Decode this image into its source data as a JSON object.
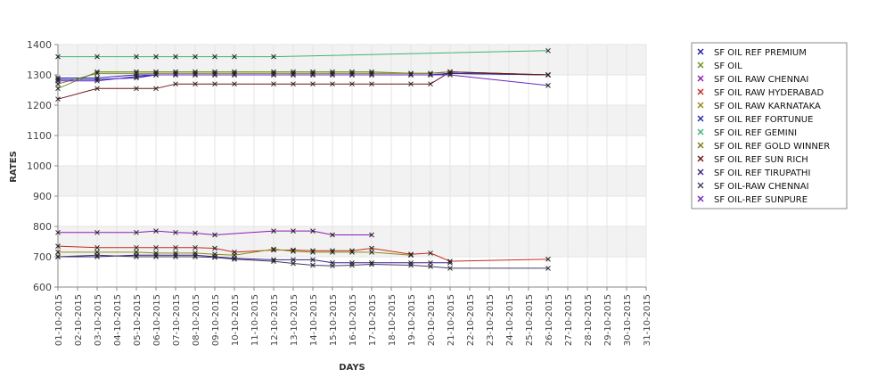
{
  "chart_data": {
    "type": "line",
    "title": "",
    "xlabel": "DAYS",
    "ylabel": "RATES",
    "ylim": [
      600,
      1400
    ],
    "yticks": [
      600,
      700,
      800,
      900,
      1000,
      1100,
      1200,
      1300,
      1400
    ],
    "grid": true,
    "legend_position": "right",
    "x": [
      "01-10-2015",
      "02-10-2015",
      "03-10-2015",
      "04-10-2015",
      "05-10-2015",
      "06-10-2015",
      "07-10-2015",
      "08-10-2015",
      "09-10-2015",
      "10-10-2015",
      "11-10-2015",
      "12-10-2015",
      "13-10-2015",
      "14-10-2015",
      "15-10-2015",
      "16-10-2015",
      "17-10-2015",
      "18-10-2015",
      "19-10-2015",
      "20-10-2015",
      "21-10-2015",
      "22-10-2015",
      "23-10-2015",
      "24-10-2015",
      "25-10-2015",
      "26-10-2015",
      "27-10-2015",
      "28-10-2015",
      "29-10-2015",
      "30-10-2015",
      "31-10-2015"
    ],
    "series": [
      {
        "name": "SF OIL REF PREMIUM",
        "color": "#1c1cb4",
        "points": [
          [
            "01-10-2015",
            1285
          ],
          [
            "03-10-2015",
            1285
          ],
          [
            "05-10-2015",
            1290
          ],
          [
            "06-10-2015",
            1300
          ],
          [
            "07-10-2015",
            1300
          ],
          [
            "08-10-2015",
            1300
          ],
          [
            "09-10-2015",
            1300
          ],
          [
            "10-10-2015",
            1300
          ],
          [
            "12-10-2015",
            1300
          ],
          [
            "13-10-2015",
            1300
          ],
          [
            "14-10-2015",
            1300
          ],
          [
            "15-10-2015",
            1300
          ],
          [
            "16-10-2015",
            1300
          ],
          [
            "17-10-2015",
            1300
          ],
          [
            "19-10-2015",
            1300
          ],
          [
            "20-10-2015",
            1300
          ],
          [
            "21-10-2015",
            1305
          ],
          [
            "26-10-2015",
            1300
          ]
        ]
      },
      {
        "name": "SF OIL",
        "color": "#6b8e23",
        "points": [
          [
            "01-10-2015",
            1255
          ],
          [
            "03-10-2015",
            1310
          ],
          [
            "05-10-2015",
            1310
          ],
          [
            "06-10-2015",
            1310
          ],
          [
            "07-10-2015",
            1310
          ],
          [
            "08-10-2015",
            1310
          ],
          [
            "09-10-2015",
            1310
          ],
          [
            "10-10-2015",
            1310
          ],
          [
            "12-10-2015",
            1310
          ],
          [
            "13-10-2015",
            1310
          ],
          [
            "14-10-2015",
            1310
          ],
          [
            "15-10-2015",
            1310
          ],
          [
            "16-10-2015",
            1310
          ],
          [
            "17-10-2015",
            1310
          ],
          [
            "19-10-2015",
            1305
          ],
          [
            "20-10-2015",
            1305
          ],
          [
            "21-10-2015",
            1310
          ],
          [
            "26-10-2015",
            1300
          ]
        ]
      },
      {
        "name": "SF OIL RAW CHENNAI",
        "color": "#8b1ab4",
        "points": [
          [
            "01-10-2015",
            780
          ],
          [
            "03-10-2015",
            780
          ],
          [
            "05-10-2015",
            780
          ],
          [
            "06-10-2015",
            785
          ],
          [
            "07-10-2015",
            780
          ],
          [
            "08-10-2015",
            778
          ],
          [
            "09-10-2015",
            772
          ],
          [
            "12-10-2015",
            785
          ],
          [
            "13-10-2015",
            785
          ],
          [
            "14-10-2015",
            785
          ],
          [
            "15-10-2015",
            772
          ],
          [
            "17-10-2015",
            772
          ]
        ]
      },
      {
        "name": "SF OIL RAW HYDERABAD",
        "color": "#c8281e",
        "points": [
          [
            "01-10-2015",
            735
          ],
          [
            "03-10-2015",
            730
          ],
          [
            "05-10-2015",
            730
          ],
          [
            "06-10-2015",
            730
          ],
          [
            "07-10-2015",
            730
          ],
          [
            "08-10-2015",
            730
          ],
          [
            "09-10-2015",
            728
          ],
          [
            "10-10-2015",
            715
          ],
          [
            "12-10-2015",
            722
          ],
          [
            "13-10-2015",
            722
          ],
          [
            "14-10-2015",
            720
          ],
          [
            "15-10-2015",
            720
          ],
          [
            "16-10-2015",
            720
          ],
          [
            "17-10-2015",
            728
          ],
          [
            "19-10-2015",
            708
          ],
          [
            "20-10-2015",
            712
          ],
          [
            "21-10-2015",
            685
          ],
          [
            "26-10-2015",
            692
          ]
        ]
      },
      {
        "name": "SF OIL RAW KARNATAKA",
        "color": "#8c8c14",
        "points": [
          [
            "01-10-2015",
            715
          ],
          [
            "03-10-2015",
            715
          ],
          [
            "05-10-2015",
            715
          ],
          [
            "06-10-2015",
            712
          ],
          [
            "07-10-2015",
            712
          ],
          [
            "08-10-2015",
            712
          ],
          [
            "09-10-2015",
            708
          ],
          [
            "10-10-2015",
            705
          ],
          [
            "12-10-2015",
            725
          ],
          [
            "13-10-2015",
            718
          ],
          [
            "14-10-2015",
            715
          ],
          [
            "15-10-2015",
            715
          ],
          [
            "16-10-2015",
            715
          ],
          [
            "17-10-2015",
            715
          ],
          [
            "19-10-2015",
            705
          ]
        ]
      },
      {
        "name": "SF OIL REF FORTUNUE",
        "color": "#2828b4",
        "points": [
          [
            "01-10-2015",
            1290
          ],
          [
            "03-10-2015",
            1290
          ],
          [
            "05-10-2015",
            1300
          ],
          [
            "06-10-2015",
            1300
          ],
          [
            "07-10-2015",
            1300
          ],
          [
            "08-10-2015",
            1300
          ],
          [
            "09-10-2015",
            1300
          ],
          [
            "10-10-2015",
            1300
          ],
          [
            "12-10-2015",
            1300
          ],
          [
            "13-10-2015",
            1300
          ],
          [
            "14-10-2015",
            1300
          ],
          [
            "15-10-2015",
            1300
          ],
          [
            "16-10-2015",
            1300
          ],
          [
            "17-10-2015",
            1300
          ],
          [
            "19-10-2015",
            1300
          ],
          [
            "20-10-2015",
            1300
          ],
          [
            "21-10-2015",
            1305
          ],
          [
            "26-10-2015",
            1300
          ]
        ]
      },
      {
        "name": "SF OIL REF GEMINI",
        "color": "#3cb371",
        "points": [
          [
            "01-10-2015",
            1360
          ],
          [
            "03-10-2015",
            1360
          ],
          [
            "05-10-2015",
            1360
          ],
          [
            "06-10-2015",
            1360
          ],
          [
            "07-10-2015",
            1360
          ],
          [
            "08-10-2015",
            1360
          ],
          [
            "09-10-2015",
            1360
          ],
          [
            "10-10-2015",
            1360
          ],
          [
            "12-10-2015",
            1360
          ],
          [
            "26-10-2015",
            1380
          ]
        ]
      },
      {
        "name": "SF OIL REF GOLD WINNER",
        "color": "#7a7a14",
        "points": [
          [
            "01-10-2015",
            1270
          ],
          [
            "03-10-2015",
            1305
          ],
          [
            "05-10-2015",
            1305
          ],
          [
            "06-10-2015",
            1305
          ],
          [
            "07-10-2015",
            1305
          ],
          [
            "08-10-2015",
            1305
          ],
          [
            "09-10-2015",
            1305
          ],
          [
            "10-10-2015",
            1305
          ],
          [
            "12-10-2015",
            1305
          ],
          [
            "13-10-2015",
            1305
          ],
          [
            "14-10-2015",
            1305
          ],
          [
            "15-10-2015",
            1305
          ],
          [
            "16-10-2015",
            1305
          ],
          [
            "17-10-2015",
            1305
          ],
          [
            "19-10-2015",
            1305
          ],
          [
            "20-10-2015",
            1305
          ],
          [
            "21-10-2015",
            1310
          ],
          [
            "26-10-2015",
            1300
          ]
        ]
      },
      {
        "name": "SF OIL REF SUN RICH",
        "color": "#6e1414",
        "points": [
          [
            "01-10-2015",
            1220
          ],
          [
            "03-10-2015",
            1255
          ],
          [
            "05-10-2015",
            1255
          ],
          [
            "06-10-2015",
            1255
          ],
          [
            "07-10-2015",
            1270
          ],
          [
            "08-10-2015",
            1270
          ],
          [
            "09-10-2015",
            1270
          ],
          [
            "10-10-2015",
            1270
          ],
          [
            "12-10-2015",
            1270
          ],
          [
            "13-10-2015",
            1270
          ],
          [
            "14-10-2015",
            1270
          ],
          [
            "15-10-2015",
            1270
          ],
          [
            "16-10-2015",
            1270
          ],
          [
            "17-10-2015",
            1270
          ],
          [
            "19-10-2015",
            1270
          ],
          [
            "20-10-2015",
            1270
          ],
          [
            "21-10-2015",
            1310
          ],
          [
            "26-10-2015",
            1300
          ]
        ]
      },
      {
        "name": "SF OIL REF TIRUPATHI",
        "color": "#3c1e8c",
        "points": [
          [
            "01-10-2015",
            700
          ],
          [
            "03-10-2015",
            700
          ],
          [
            "05-10-2015",
            705
          ],
          [
            "06-10-2015",
            705
          ],
          [
            "07-10-2015",
            705
          ],
          [
            "08-10-2015",
            705
          ],
          [
            "09-10-2015",
            700
          ],
          [
            "10-10-2015",
            695
          ],
          [
            "12-10-2015",
            690
          ],
          [
            "13-10-2015",
            690
          ],
          [
            "14-10-2015",
            690
          ],
          [
            "15-10-2015",
            680
          ],
          [
            "16-10-2015",
            680
          ],
          [
            "17-10-2015",
            680
          ],
          [
            "19-10-2015",
            680
          ],
          [
            "20-10-2015",
            680
          ],
          [
            "21-10-2015",
            680
          ]
        ]
      },
      {
        "name": "SF OIL-RAW CHENNAI",
        "color": "#463c64",
        "points": [
          [
            "01-10-2015",
            700
          ],
          [
            "03-10-2015",
            705
          ],
          [
            "05-10-2015",
            700
          ],
          [
            "06-10-2015",
            700
          ],
          [
            "07-10-2015",
            700
          ],
          [
            "08-10-2015",
            700
          ],
          [
            "09-10-2015",
            698
          ],
          [
            "10-10-2015",
            692
          ],
          [
            "12-10-2015",
            685
          ],
          [
            "13-10-2015",
            678
          ],
          [
            "14-10-2015",
            672
          ],
          [
            "15-10-2015",
            670
          ],
          [
            "16-10-2015",
            672
          ],
          [
            "17-10-2015",
            675
          ],
          [
            "19-10-2015",
            672
          ],
          [
            "20-10-2015",
            668
          ],
          [
            "21-10-2015",
            662
          ],
          [
            "26-10-2015",
            662
          ]
        ]
      },
      {
        "name": "SF OIL-REF SUNPURE",
        "color": "#6a28c8",
        "points": [
          [
            "01-10-2015",
            1280
          ],
          [
            "03-10-2015",
            1280
          ],
          [
            "05-10-2015",
            1295
          ],
          [
            "06-10-2015",
            1300
          ],
          [
            "07-10-2015",
            1300
          ],
          [
            "08-10-2015",
            1300
          ],
          [
            "09-10-2015",
            1300
          ],
          [
            "10-10-2015",
            1300
          ],
          [
            "12-10-2015",
            1300
          ],
          [
            "13-10-2015",
            1300
          ],
          [
            "14-10-2015",
            1300
          ],
          [
            "15-10-2015",
            1300
          ],
          [
            "16-10-2015",
            1300
          ],
          [
            "17-10-2015",
            1300
          ],
          [
            "19-10-2015",
            1300
          ],
          [
            "20-10-2015",
            1300
          ],
          [
            "21-10-2015",
            1300
          ],
          [
            "26-10-2015",
            1265
          ]
        ]
      }
    ]
  }
}
